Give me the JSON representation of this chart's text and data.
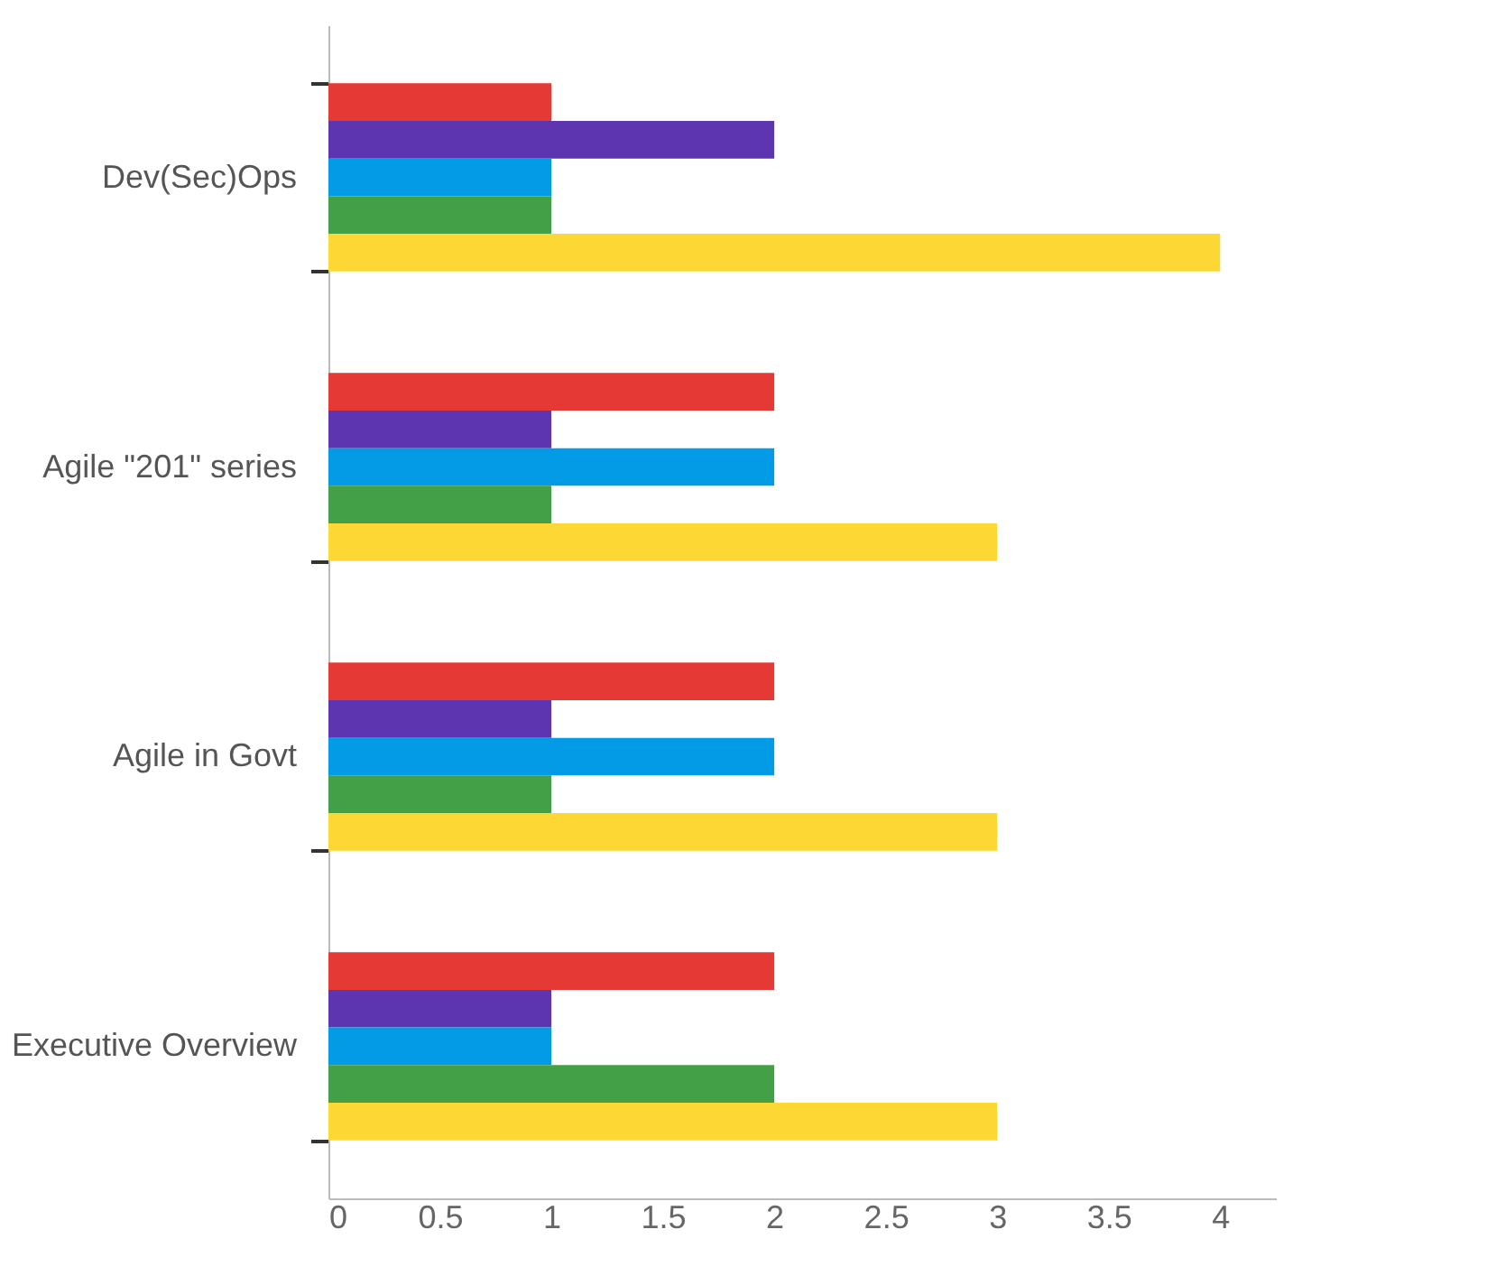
{
  "chart_data": {
    "type": "bar",
    "orientation": "horizontal",
    "categories": [
      "Dev(Sec)Ops",
      "Agile \"201\" series",
      "Agile in Govt",
      "Executive Overview"
    ],
    "series": [
      {
        "color": "#e53935",
        "values": [
          1,
          2,
          2,
          2
        ]
      },
      {
        "color": "#5e35b1",
        "values": [
          2,
          1,
          1,
          1
        ]
      },
      {
        "color": "#039be5",
        "values": [
          1,
          2,
          2,
          1
        ]
      },
      {
        "color": "#43a047",
        "values": [
          1,
          1,
          1,
          2
        ]
      },
      {
        "color": "#fdd835",
        "values": [
          4,
          3,
          3,
          3
        ]
      }
    ],
    "xlim": [
      0,
      4.25
    ],
    "xticks": [
      0,
      0.5,
      1,
      1.5,
      2,
      2.5,
      3,
      3.5,
      4
    ],
    "grid": false,
    "legend": false
  }
}
